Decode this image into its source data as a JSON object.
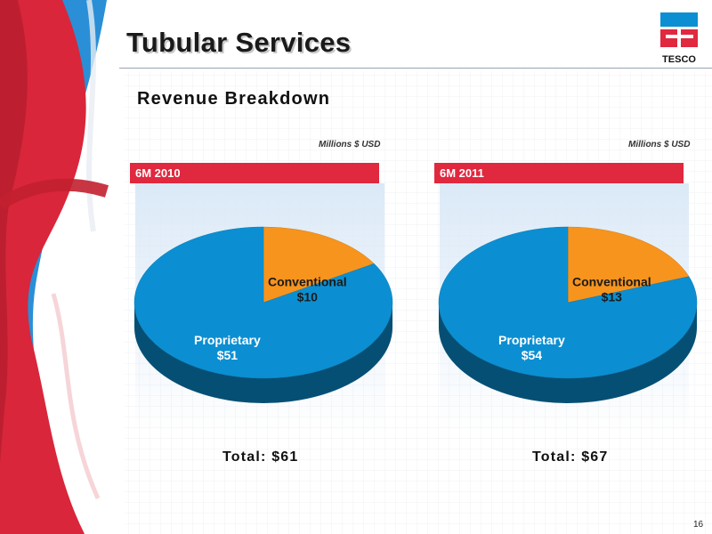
{
  "title": "Tubular Services",
  "subtitle": "Revenue Breakdown",
  "logo_text": "TESCO",
  "page_number": "16",
  "colors": {
    "accent_red": "#e0283f",
    "proprietary_blue": "#0b8fd2",
    "conventional_orange": "#f7941d"
  },
  "chart_data": [
    {
      "type": "pie",
      "period": "6M 2010",
      "units": "Millions $ USD",
      "total_label": "Total: $61",
      "slices": [
        {
          "name": "Proprietary",
          "label": "$51",
          "value": 51,
          "color": "#0b8fd2"
        },
        {
          "name": "Conventional",
          "label": "$10",
          "value": 10,
          "color": "#f7941d"
        }
      ]
    },
    {
      "type": "pie",
      "period": "6M 2011",
      "units": "Millions $ USD",
      "total_label": "Total: $67",
      "slices": [
        {
          "name": "Proprietary",
          "label": "$54",
          "value": 54,
          "color": "#0b8fd2"
        },
        {
          "name": "Conventional",
          "label": "$13",
          "value": 13,
          "color": "#f7941d"
        }
      ]
    }
  ]
}
